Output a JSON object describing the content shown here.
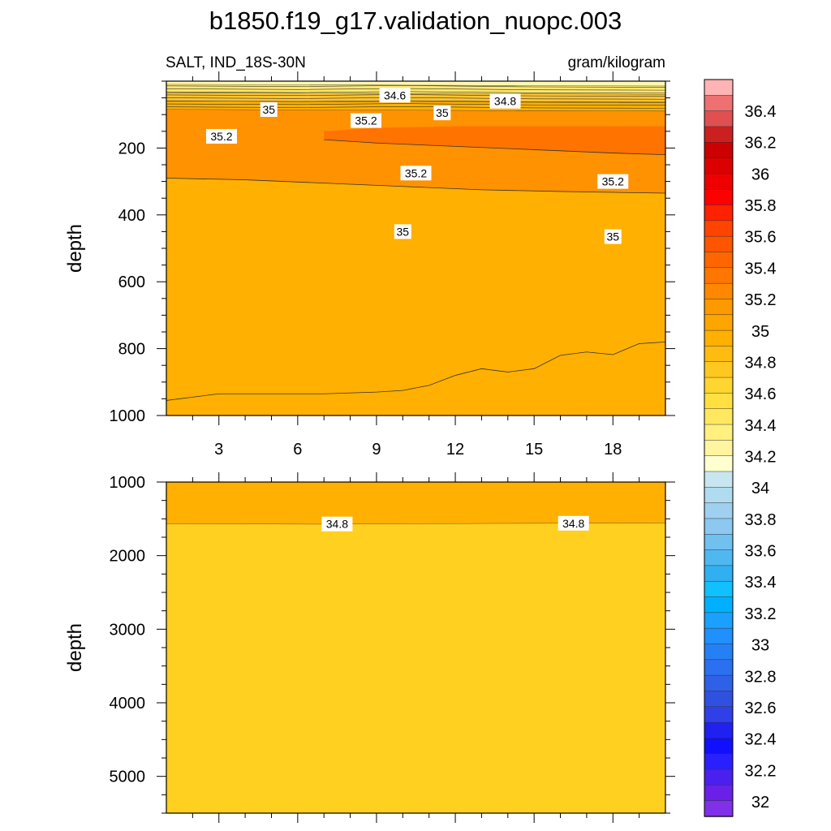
{
  "title": "b1850.f19_g17.validation_nuopc.003",
  "chart_data": [
    {
      "type": "contour",
      "panel": "upper",
      "left_label": "SALT, IND_18S-30N",
      "right_label": "gram/kilogram",
      "ylabel": "depth",
      "xlim": [
        1,
        20
      ],
      "ylim": [
        0,
        1000
      ],
      "y_inverted": true,
      "x_ticks": [
        3,
        6,
        9,
        12,
        15,
        18
      ],
      "y_ticks": [
        200,
        400,
        600,
        800,
        1000
      ],
      "contour_interval": 0.1,
      "regions": [
        {
          "level": 34.3,
          "color": "#fff8b0",
          "top": [
            [
              1,
              0
            ],
            [
              20,
              0
            ]
          ],
          "bottom": [
            [
              1,
              10
            ],
            [
              20,
              15
            ]
          ]
        },
        {
          "level": 34.5,
          "color": "#ffe76a",
          "top": [
            [
              1,
              10
            ],
            [
              20,
              15
            ]
          ],
          "bottom": [
            [
              1,
              35
            ],
            [
              20,
              40
            ]
          ]
        },
        {
          "level": 34.7,
          "color": "#ffc42e",
          "top": [
            [
              1,
              35
            ],
            [
              20,
              40
            ]
          ],
          "bottom": [
            [
              1,
              60
            ],
            [
              20,
              65
            ]
          ]
        },
        {
          "level": 34.9,
          "color": "#ffb000",
          "top": [
            [
              1,
              60
            ],
            [
              20,
              65
            ]
          ],
          "bottom": [
            [
              1,
              85
            ],
            [
              20,
              90
            ]
          ]
        },
        {
          "level": 35.1,
          "color": "#ff9200",
          "top": [
            [
              1,
              85
            ],
            [
              20,
              90
            ]
          ],
          "bottom": [
            [
              1,
              290
            ],
            [
              4,
              295
            ],
            [
              7,
              305
            ],
            [
              10,
              315
            ],
            [
              13,
              325
            ],
            [
              16,
              330
            ],
            [
              20,
              335
            ]
          ]
        },
        {
          "level": 35.3,
          "color": "#ff7300",
          "top": [
            [
              7,
              150
            ],
            [
              9,
              140
            ],
            [
              12,
              135
            ],
            [
              16,
              135
            ],
            [
              20,
              135
            ]
          ],
          "bottom": [
            [
              7,
              175
            ],
            [
              9,
              185
            ],
            [
              12,
              195
            ],
            [
              15,
              205
            ],
            [
              18,
              215
            ],
            [
              20,
              220
            ]
          ]
        },
        {
          "level": 34.9,
          "color": "#ffb000",
          "top": [
            [
              1,
              430
            ],
            [
              4,
              432
            ],
            [
              7,
              437
            ],
            [
              10,
              450
            ],
            [
              13,
              460
            ],
            [
              16,
              465
            ],
            [
              20,
              470
            ]
          ],
          "bottom": [
            [
              1,
              955
            ],
            [
              3,
              935
            ],
            [
              7,
              935
            ],
            [
              9,
              930
            ],
            [
              10,
              925
            ],
            [
              11,
              910
            ],
            [
              12,
              880
            ],
            [
              13,
              860
            ],
            [
              14,
              870
            ],
            [
              15,
              860
            ],
            [
              16,
              820
            ],
            [
              17,
              810
            ],
            [
              18,
              818
            ],
            [
              19,
              785
            ],
            [
              20,
              780
            ]
          ]
        }
      ],
      "contour_labels": [
        {
          "text": "34.6",
          "x": 9.7,
          "y": 42
        },
        {
          "text": "34.8",
          "x": 13.9,
          "y": 60
        },
        {
          "text": "35",
          "x": 4.9,
          "y": 85
        },
        {
          "text": "35",
          "x": 11.5,
          "y": 95
        },
        {
          "text": "35.2",
          "x": 8.6,
          "y": 118
        },
        {
          "text": "35.2",
          "x": 3.1,
          "y": 165
        },
        {
          "text": "35.2",
          "x": 10.5,
          "y": 275
        },
        {
          "text": "35.2",
          "x": 18.0,
          "y": 300
        },
        {
          "text": "35",
          "x": 10.0,
          "y": 450
        },
        {
          "text": "35",
          "x": 18.0,
          "y": 465
        }
      ]
    },
    {
      "type": "contour",
      "panel": "lower",
      "ylabel": "depth",
      "xlim": [
        1,
        20
      ],
      "ylim": [
        1000,
        5500
      ],
      "y_inverted": true,
      "y_ticks": [
        1000,
        2000,
        3000,
        4000,
        5000
      ],
      "regions": [
        {
          "level": 34.9,
          "color": "#ffb000",
          "top": [
            [
              1,
              1000
            ],
            [
              20,
              1000
            ]
          ],
          "bottom": [
            [
              1,
              1570
            ],
            [
              7,
              1575
            ],
            [
              13,
              1565
            ],
            [
              20,
              1560
            ]
          ]
        },
        {
          "level": 34.7,
          "color": "#ffd020",
          "top": [
            [
              1,
              1570
            ],
            [
              7,
              1575
            ],
            [
              13,
              1565
            ],
            [
              20,
              1560
            ]
          ],
          "bottom": [
            [
              1,
              5500
            ],
            [
              20,
              5500
            ]
          ]
        }
      ],
      "contour_labels": [
        {
          "text": "34.8",
          "x": 7.5,
          "y": 1570
        },
        {
          "text": "34.8",
          "x": 16.5,
          "y": 1560
        }
      ]
    }
  ],
  "colorbar": {
    "labels": [
      "36.4",
      "36.2",
      "36",
      "35.8",
      "35.6",
      "35.4",
      "35.2",
      "35",
      "34.8",
      "34.6",
      "34.4",
      "34.2",
      "34",
      "33.8",
      "33.6",
      "33.4",
      "33.2",
      "33",
      "32.8",
      "32.6",
      "32.4",
      "32.2",
      "32"
    ],
    "colors": [
      "#ffb4b4",
      "#ee7070",
      "#e05050",
      "#cc2020",
      "#cc0000",
      "#dd0000",
      "#ee0000",
      "#ff0000",
      "#ff2200",
      "#ff4400",
      "#ff5500",
      "#ff6600",
      "#ff7700",
      "#ff8800",
      "#ff9900",
      "#ffa500",
      "#ffb000",
      "#ffbc10",
      "#ffc820",
      "#ffd530",
      "#ffe040",
      "#ffe860",
      "#fff080",
      "#fff5a0",
      "#ffffd0",
      "#c8e6f0",
      "#b0dcf0",
      "#a0d0f0",
      "#8cc8f0",
      "#70c0f0",
      "#50b8f0",
      "#30b0f0",
      "#10c0ff",
      "#00b0ff",
      "#1aa0ff",
      "#2090ff",
      "#2680f5",
      "#2a70f0",
      "#2e60e8",
      "#3050e0",
      "#3040e8",
      "#2020f0",
      "#1010ff",
      "#2a20ff",
      "#4a20f0",
      "#6a20e8",
      "#8030e8"
    ]
  }
}
